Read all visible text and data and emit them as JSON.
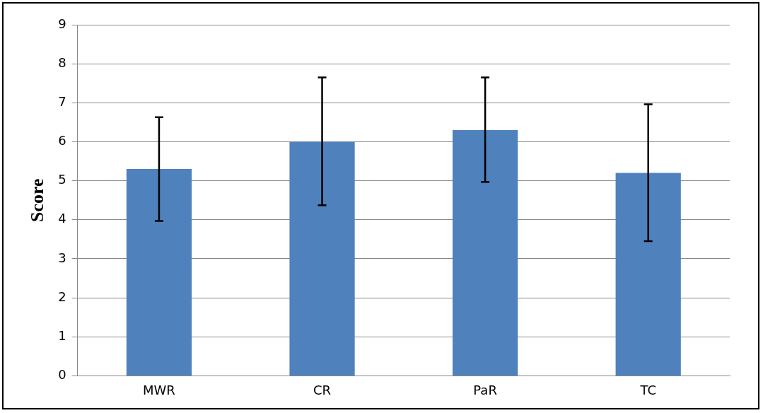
{
  "chart_data": {
    "type": "bar",
    "ylabel": "Score",
    "categories": [
      "MWR",
      "CR",
      "PaR",
      "TC"
    ],
    "values": [
      5.3,
      6.0,
      6.3,
      5.2
    ],
    "color": "#4f81bd",
    "errors": [
      [
        3.97,
        6.63
      ],
      [
        4.37,
        7.65
      ],
      [
        4.97,
        7.65
      ],
      [
        3.45,
        6.96
      ]
    ],
    "ylim": [
      0,
      9
    ],
    "yticks": [
      0,
      1,
      2,
      3,
      4,
      5,
      6,
      7,
      8,
      9
    ],
    "grid": "y",
    "legend": false
  }
}
